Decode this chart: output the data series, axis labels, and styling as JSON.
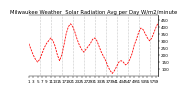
{
  "title": "Milwaukee Weather  Solar Radiation Avg per Day W/m2/minute",
  "line_color": "#ff0000",
  "bg_color": "#ffffff",
  "grid_color": "#999999",
  "ylim": [
    50,
    480
  ],
  "yticks": [
    100,
    150,
    200,
    250,
    300,
    350,
    400,
    450
  ],
  "values": [
    280,
    240,
    200,
    170,
    150,
    170,
    210,
    250,
    280,
    300,
    320,
    300,
    260,
    200,
    160,
    200,
    270,
    350,
    400,
    420,
    400,
    360,
    310,
    270,
    240,
    220,
    240,
    260,
    280,
    310,
    320,
    300,
    260,
    220,
    190,
    160,
    120,
    90,
    70,
    90,
    120,
    150,
    160,
    150,
    130,
    140,
    170,
    210,
    270,
    310,
    360,
    390,
    380,
    350,
    320,
    300,
    320,
    360,
    400,
    430
  ],
  "vgrid_positions": [
    5,
    10,
    15,
    20,
    25,
    30,
    35,
    40,
    45,
    50,
    55
  ],
  "tick_label_size": 3.0,
  "title_fontsize": 3.8
}
